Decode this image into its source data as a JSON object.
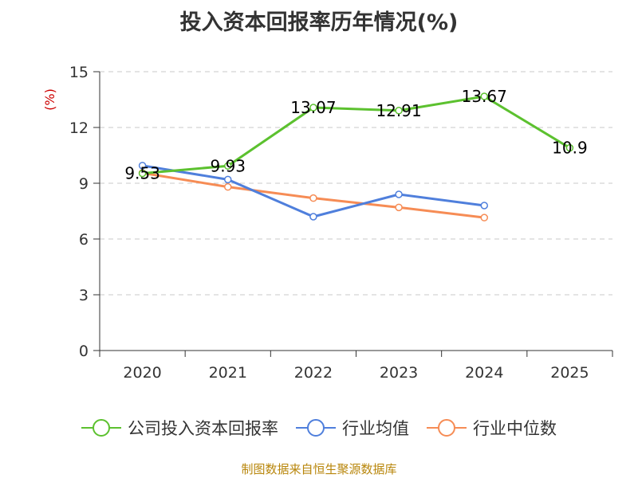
{
  "chart_data": {
    "type": "line",
    "title": "投入资本回报率历年情况(%)",
    "ylabel": "(%)",
    "xlabel": "",
    "ylim": [
      0,
      15
    ],
    "yticks": [
      0,
      3,
      6,
      9,
      12,
      15
    ],
    "grid": true,
    "categories": [
      "2020",
      "2021",
      "2022",
      "2023",
      "2024",
      "2025"
    ],
    "series": [
      {
        "name": "公司投入资本回报率",
        "color": "#5cc12f",
        "values": [
          9.53,
          9.93,
          13.07,
          12.91,
          13.67,
          10.9
        ],
        "labels": [
          "9.53",
          "9.93",
          "13.07",
          "12.91",
          "13.67",
          "10.9"
        ],
        "show_labels": true
      },
      {
        "name": "行业均值",
        "color": "#4f7fdc",
        "values": [
          9.95,
          9.2,
          7.2,
          8.4,
          7.8,
          null
        ],
        "show_labels": false
      },
      {
        "name": "行业中位数",
        "color": "#f68c55",
        "values": [
          9.55,
          8.8,
          8.2,
          7.7,
          7.15,
          null
        ],
        "show_labels": false
      }
    ],
    "legend_position": "bottom",
    "source": "制图数据来自恒生聚源数据库"
  }
}
